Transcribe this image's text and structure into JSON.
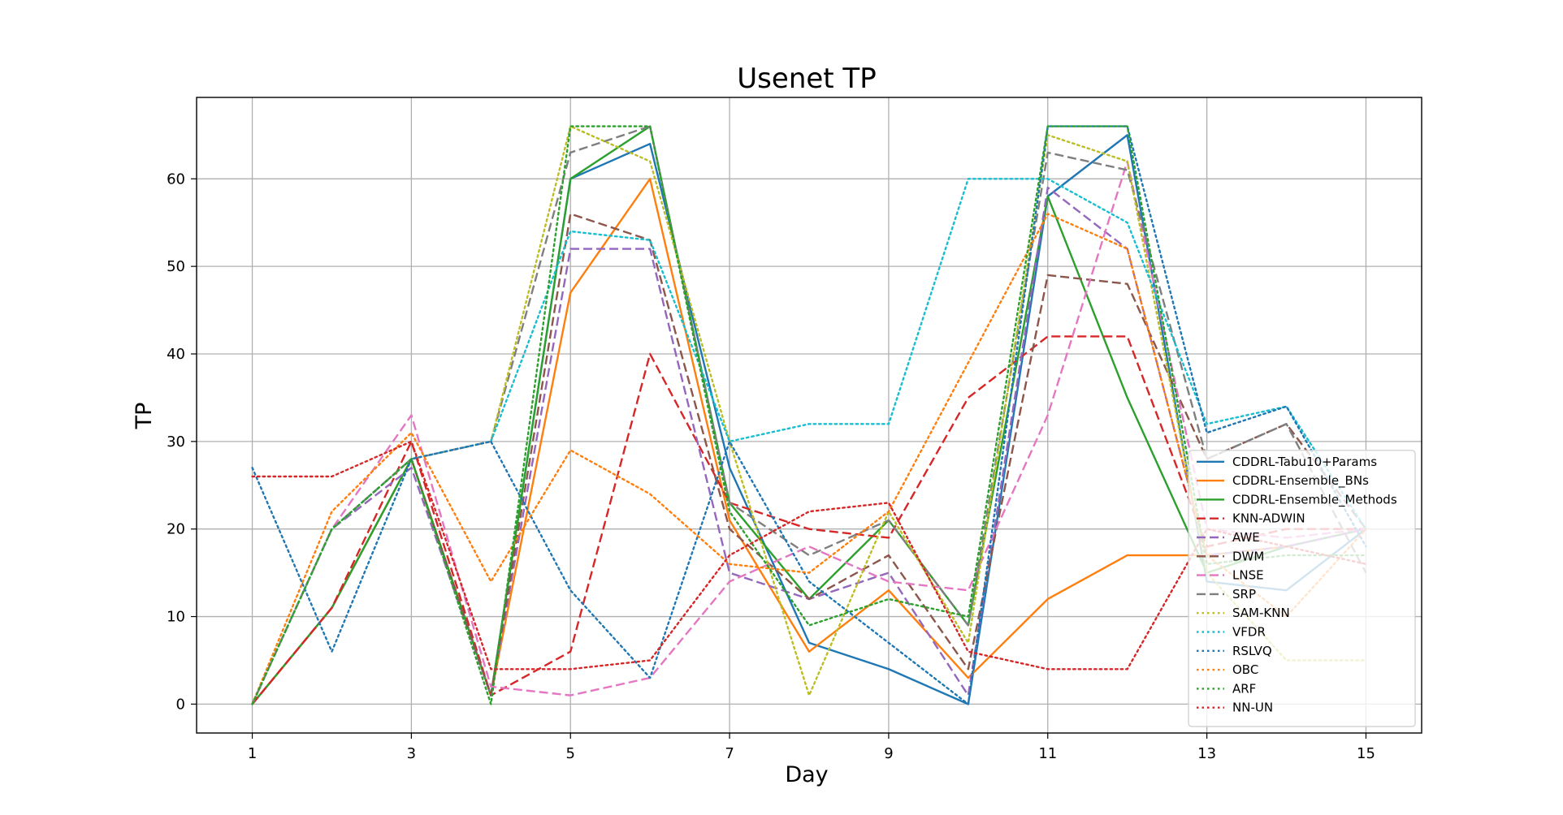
{
  "chart_data": {
    "type": "line",
    "title": "Usenet TP",
    "xlabel": "Day",
    "ylabel": "TP",
    "x": [
      1,
      2,
      3,
      4,
      5,
      6,
      7,
      8,
      9,
      10,
      11,
      12,
      13,
      14,
      15
    ],
    "xticks": [
      "1",
      "3",
      "5",
      "7",
      "9",
      "11",
      "13",
      "15"
    ],
    "yticks": [
      "0",
      "10",
      "20",
      "30",
      "40",
      "50",
      "60"
    ],
    "xlim": [
      0.3,
      15.7
    ],
    "ylim": [
      -3.3,
      69.3
    ],
    "grid": true,
    "legend_position": "lower-right",
    "series": [
      {
        "name": "CDDRL-Tabu10+Params",
        "color": "#1f77b4",
        "style": "solid",
        "values": [
          0,
          11,
          28,
          1,
          60,
          64,
          27,
          7,
          4,
          0,
          58,
          65,
          14,
          13,
          20
        ]
      },
      {
        "name": "CDDRL-Ensemble_BNs",
        "color": "#ff7f0e",
        "style": "solid",
        "values": [
          0,
          11,
          28,
          1,
          47,
          60,
          21,
          6,
          13,
          3,
          12,
          17,
          17,
          18,
          20
        ]
      },
      {
        "name": "CDDRL-Ensemble_Methods",
        "color": "#2ca02c",
        "style": "solid",
        "values": [
          0,
          11,
          28,
          1,
          60,
          66,
          23,
          12,
          21,
          9,
          58,
          35,
          15,
          18,
          20
        ]
      },
      {
        "name": "KNN-ADWIN",
        "color": "#d62728",
        "style": "dashed",
        "values": [
          0,
          11,
          30,
          1,
          6,
          40,
          23,
          20,
          19,
          35,
          42,
          42,
          18,
          20,
          20
        ]
      },
      {
        "name": "AWE",
        "color": "#9467bd",
        "style": "dashed",
        "values": [
          0,
          20,
          27,
          1,
          52,
          52,
          15,
          12,
          15,
          1,
          59,
          52,
          17,
          18,
          20
        ]
      },
      {
        "name": "DWM",
        "color": "#8c564b",
        "style": "dashed",
        "values": [
          0,
          20,
          28,
          1,
          56,
          53,
          20,
          12,
          17,
          4,
          49,
          48,
          28,
          32,
          20
        ]
      },
      {
        "name": "LNSE",
        "color": "#e377c2",
        "style": "dashed",
        "values": [
          0,
          20,
          33,
          2,
          1,
          3,
          14,
          18,
          14,
          13,
          33,
          62,
          20,
          19,
          20
        ]
      },
      {
        "name": "SRP",
        "color": "#7f7f7f",
        "style": "dashed",
        "values": [
          0,
          20,
          28,
          30,
          63,
          66,
          23,
          17,
          21,
          9,
          63,
          61,
          28,
          32,
          15
        ]
      },
      {
        "name": "SAM-KNN",
        "color": "#bcbd22",
        "style": "dotted",
        "values": [
          0,
          20,
          28,
          30,
          66,
          62,
          30,
          1,
          22,
          7,
          65,
          62,
          15,
          5,
          5
        ]
      },
      {
        "name": "VFDR",
        "color": "#17becf",
        "style": "dotted",
        "values": [
          0,
          20,
          28,
          30,
          54,
          53,
          30,
          32,
          32,
          60,
          60,
          55,
          32,
          34,
          20
        ]
      },
      {
        "name": "RSLVQ",
        "color": "#1f77b4",
        "style": "dotted",
        "values": [
          27,
          6,
          28,
          30,
          13,
          3,
          30,
          14,
          7,
          0,
          66,
          66,
          31,
          34,
          18
        ]
      },
      {
        "name": "OBC",
        "color": "#ff7f0e",
        "style": "dotted",
        "values": [
          0,
          22,
          31,
          14,
          29,
          24,
          16,
          15,
          22,
          39,
          56,
          52,
          17,
          10,
          20
        ]
      },
      {
        "name": "ARF",
        "color": "#2ca02c",
        "style": "dotted",
        "values": [
          0,
          20,
          28,
          0,
          66,
          66,
          22,
          9,
          12,
          10,
          66,
          66,
          16,
          17,
          17
        ]
      },
      {
        "name": "NN-UN",
        "color": "#d62728",
        "style": "dotted",
        "values": [
          26,
          26,
          30,
          4,
          4,
          5,
          17,
          22,
          23,
          6,
          4,
          4,
          20,
          18,
          16
        ]
      }
    ]
  }
}
